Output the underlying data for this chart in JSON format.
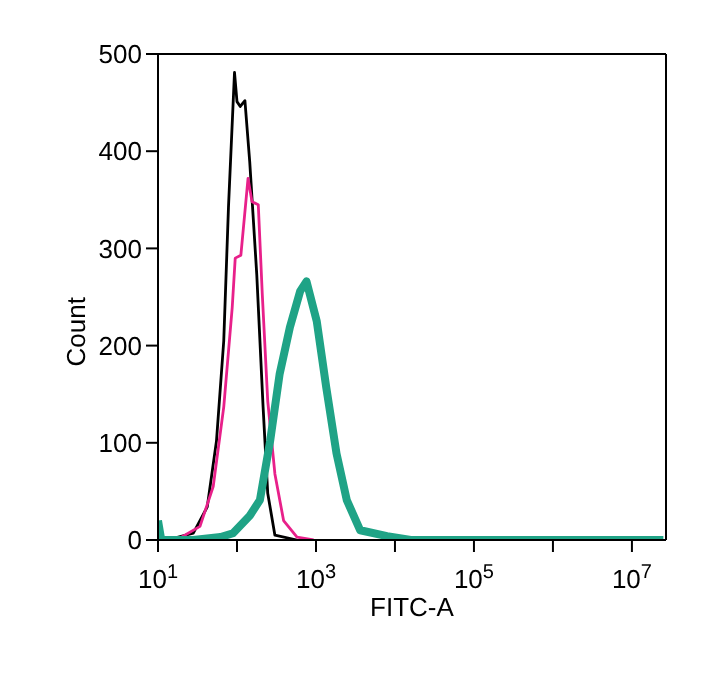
{
  "chart_data": {
    "type": "line",
    "xlabel": "FITC-A",
    "ylabel": "Count",
    "log": "x",
    "xlim": [
      10,
      27000000
    ],
    "ylim": [
      0,
      500
    ],
    "xticks": [
      {
        "value": 10,
        "label": "10$^{1}$"
      },
      {
        "value": 100,
        "label": null
      },
      {
        "value": 1000,
        "label": "10$^{3}$"
      },
      {
        "value": 10000,
        "label": null
      },
      {
        "value": 100000,
        "label": "10$^{5}$"
      },
      {
        "value": 1000000,
        "label": null
      },
      {
        "value": 10000000,
        "label": "10$^{7}$"
      }
    ],
    "yticks": [
      0,
      100,
      200,
      300,
      400,
      500
    ],
    "grid": false,
    "legend": false,
    "marker": "none",
    "line_style": "solid",
    "series": [
      {
        "color": "#000000",
        "x": [
          13,
          28,
          42,
          55,
          68,
          78,
          93,
          100,
          110,
          126,
          145,
          178,
          214,
          245,
          302,
          575
        ],
        "values": [
          0,
          7,
          34,
          102,
          205,
          342,
          481,
          451,
          446,
          452,
          389,
          273,
          137,
          48,
          5,
          0
        ]
      },
      {
        "color": "#e8208a",
        "x": [
          19,
          34,
          50,
          68,
          87,
          95,
          112,
          138,
          155,
          186,
          209,
          245,
          302,
          389,
          575,
          933
        ],
        "values": [
          2,
          14,
          55,
          137,
          239,
          290,
          293,
          372,
          348,
          345,
          253,
          143,
          68,
          20,
          3,
          0
        ]
      },
      {
        "color": "#1fa386",
        "x": [
          10,
          11,
          28,
          62,
          89,
          145,
          195,
          263,
          347,
          468,
          631,
          759,
          1023,
          1349,
          1820,
          2455,
          3631,
          7943,
          15849,
          25000000
        ],
        "values": [
          20,
          0,
          0,
          3,
          7,
          25,
          41,
          102,
          171,
          219,
          256,
          266,
          225,
          157,
          89,
          41,
          10,
          4,
          0,
          0
        ]
      }
    ]
  }
}
